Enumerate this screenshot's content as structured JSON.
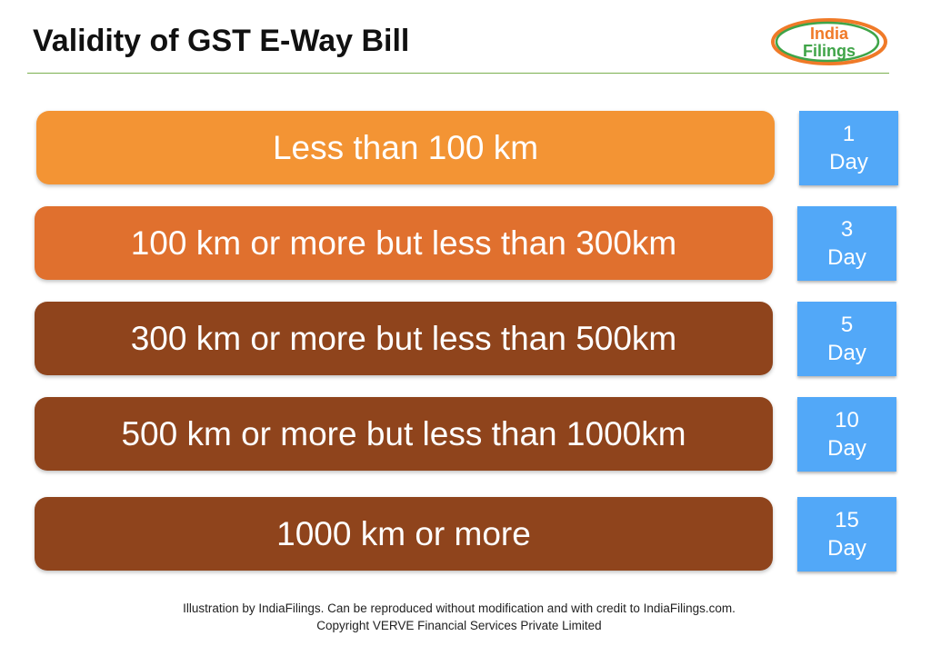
{
  "title": "Validity of GST E-Way Bill",
  "logo": {
    "line1": "India",
    "line2": "Filings"
  },
  "rows": [
    {
      "distance": "Less than 100 km",
      "num": "1",
      "unit": "Day",
      "color": "#f39434"
    },
    {
      "distance": "100 km or more but less than 300km",
      "num": "3",
      "unit": "Day",
      "color": "#e0702e"
    },
    {
      "distance": "300 km or more but less than 500km",
      "num": "5",
      "unit": "Day",
      "color": "#8f441c"
    },
    {
      "distance": "500 km or more but less than 1000km",
      "num": "10",
      "unit": "Day",
      "color": "#8f441c"
    },
    {
      "distance": "1000 km or more",
      "num": "15",
      "unit": "Day",
      "color": "#8f441c"
    }
  ],
  "footer": {
    "line1": "Illustration by IndiaFilings. Can be reproduced without modification and with credit to IndiaFilings.com.",
    "line2": "Copyright VERVE Financial Services Private Limited"
  }
}
